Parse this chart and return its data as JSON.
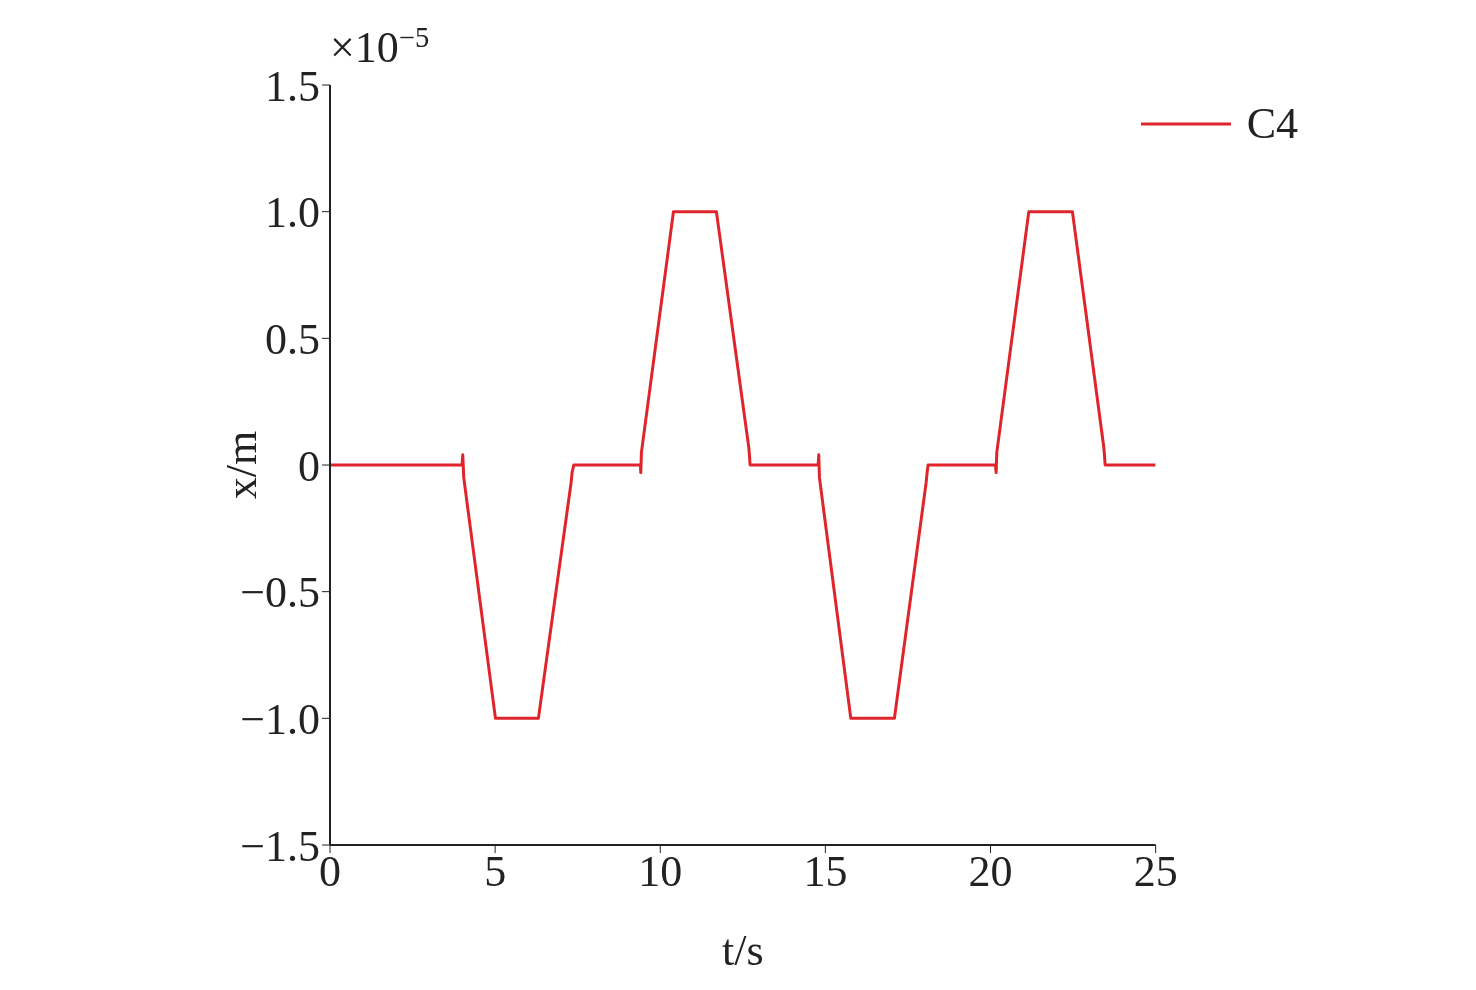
{
  "chart_data": {
    "type": "line",
    "xlabel": "t/s",
    "ylabel": "x/m",
    "annotations": [
      "×10$^{−5}$"
    ],
    "x": [
      0,
      4.0,
      4.02,
      4.05,
      5.01,
      6.31,
      7.3,
      7.33,
      7.38,
      9.4,
      9.41,
      9.43,
      10.4,
      11.7,
      12.68,
      12.7,
      12.72,
      14.78,
      14.8,
      14.82,
      15.77,
      17.09,
      18.05,
      18.08,
      18.11,
      20.15,
      20.17,
      20.19,
      21.16,
      22.48,
      23.43,
      23.45,
      23.47,
      25
    ],
    "series": [
      {
        "name": "C4",
        "color": "#e0242b",
        "values": [
          0,
          0,
          0.04,
          -0.05,
          -1,
          -1,
          -0.07,
          -0.03,
          0,
          0,
          -0.03,
          0.05,
          1,
          1,
          0.07,
          0.04,
          0,
          0,
          0.04,
          -0.05,
          -1,
          -1,
          -0.07,
          -0.03,
          0,
          0,
          -0.03,
          0.05,
          1,
          1,
          0.07,
          0.04,
          0,
          0
        ]
      }
    ],
    "xlim": [
      0,
      25
    ],
    "xticks": [
      0,
      5,
      10,
      15,
      20,
      25
    ],
    "ylim": [
      -1.5,
      1.5
    ],
    "yticks": [
      {
        "value": -1.5,
        "label": "−1.5"
      },
      {
        "value": -1,
        "label": "−1.0"
      },
      {
        "value": -0.5,
        "label": "−0.5"
      },
      0,
      0.5,
      {
        "value": 1,
        "label": "1.0"
      },
      1.5
    ],
    "grid": false,
    "legend": "top right",
    "marker": "none",
    "line_style": "solid"
  }
}
